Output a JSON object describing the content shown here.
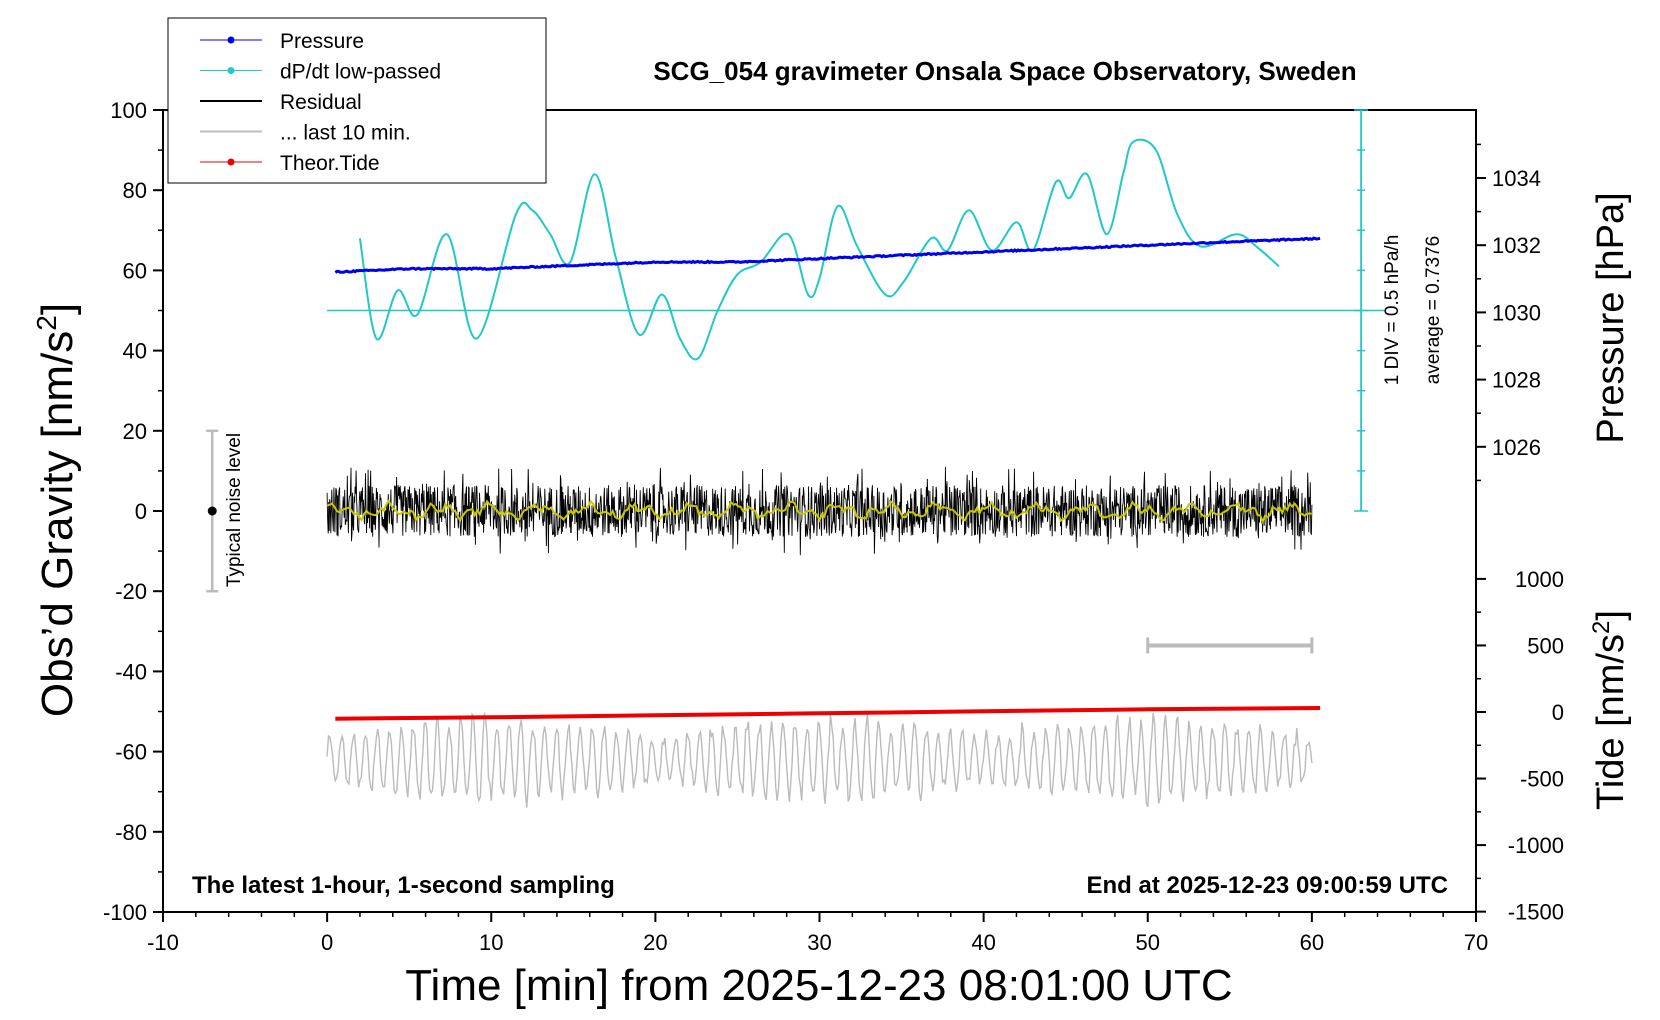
{
  "chart_data": {
    "type": "line",
    "title": "SCG_054 gravimeter Onsala Space Observatory, Sweden",
    "xlabel": "Time [min] from 2025-12-23 08:01:00 UTC",
    "ylabel_left": "Obs’d Gravity [nm/s",
    "ylabel_left_sup": "2",
    "ylabel_left_close": "]",
    "ylabel_right_pressure": "Pressure [hPa]",
    "ylabel_right_tide": "Tide [nm/s",
    "ylabel_right_tide_sup": "2",
    "ylabel_right_tide_close": "]",
    "xlim": [
      -10,
      70
    ],
    "ylim_gravity": [
      -100,
      100
    ],
    "pressure_range": [
      1024,
      1036
    ],
    "tide_range": [
      -1500,
      1500
    ],
    "x_ticks": [
      "-10",
      "0",
      "10",
      "20",
      "30",
      "40",
      "50",
      "60",
      "70"
    ],
    "y_ticks_left": [
      "100",
      "80",
      "60",
      "40",
      "20",
      "0",
      "-20",
      "-40",
      "-60",
      "-80",
      "-100"
    ],
    "y_ticks_pressure": [
      "1034",
      "1032",
      "1030",
      "1028",
      "1026"
    ],
    "y_ticks_tide": [
      "1000",
      "500",
      "0",
      "-500",
      "-1000",
      "-1500"
    ],
    "legend": [
      {
        "label": "Pressure",
        "color": "#0000ee",
        "marker": "dot"
      },
      {
        "label": "dP/dt low-passed",
        "color": "#20c8c8",
        "marker": "dot"
      },
      {
        "label": "Residual",
        "color": "#000000",
        "marker": "none"
      },
      {
        "label": "... last 10 min.",
        "color": "#bbbbbb",
        "marker": "none"
      },
      {
        "label": "Theor.Tide",
        "color": "#ee0000",
        "marker": "dot"
      }
    ],
    "series": [
      {
        "name": "Pressure",
        "axis": "pressure",
        "x": [
          0.5,
          5,
          10,
          15,
          20,
          25,
          30,
          35,
          40,
          45,
          50,
          55,
          60.5
        ],
        "values": [
          1031.2,
          1031.3,
          1031.3,
          1031.4,
          1031.5,
          1031.5,
          1031.6,
          1031.7,
          1031.8,
          1031.9,
          1032.0,
          1032.1,
          1032.2
        ]
      },
      {
        "name": "dP/dt low-passed",
        "axis": "gravity",
        "x": [
          2,
          3,
          4.3,
          5.5,
          7.3,
          9.1,
          11.5,
          12.5,
          13.6,
          14.8,
          16.3,
          17.6,
          19.0,
          20.4,
          21.5,
          22.6,
          23.8,
          25.0,
          26.4,
          28.1,
          29.3,
          30.0,
          31.1,
          32.3,
          34.0,
          35.1,
          36.8,
          37.8,
          39.1,
          40.5,
          42.0,
          43.0,
          44.4,
          45.2,
          46.3,
          47.5,
          48.5,
          49.1,
          50.5,
          51.8,
          53.2,
          55.4,
          56.6,
          58.0
        ],
        "values": [
          68,
          43,
          55,
          49,
          69,
          43,
          74,
          75,
          69,
          62,
          84,
          63,
          44,
          54,
          43,
          38,
          50,
          59,
          62,
          69,
          54,
          58,
          76,
          66,
          54,
          57,
          68,
          65,
          75,
          65,
          72,
          65,
          82,
          78,
          84,
          69,
          84,
          92,
          90,
          74,
          66,
          69,
          66,
          61
        ]
      },
      {
        "name": "Residual",
        "axis": "gravity",
        "x_range": [
          0,
          60
        ],
        "mean": 0,
        "spread": [
          -16,
          16
        ]
      },
      {
        "name": "... last 10 min.",
        "axis": "gravity",
        "x_range": [
          0,
          60
        ],
        "mean": -62,
        "spread": [
          -73,
          -51
        ]
      },
      {
        "name": "Theor.Tide",
        "axis": "tide",
        "x": [
          0.5,
          10,
          20,
          30,
          40,
          50,
          60.5
        ],
        "values": [
          -50,
          -40,
          -25,
          -10,
          5,
          20,
          30
        ]
      }
    ],
    "baseline_gravity": 50,
    "pressure_scale_labels": [
      "1 DIV = 0.5 hPa/h",
      "average = 0.7376"
    ],
    "noise_bar_label": "Typical noise level",
    "noise_bar_range": [
      -20,
      20
    ],
    "noise_bar_x": -7,
    "last10_bar": {
      "x": [
        50,
        60
      ],
      "tide_value": 500
    },
    "annotations": {
      "left": "The latest 1-hour, 1-second sampling",
      "right": "End at 2025-12-23 09:00:59 UTC"
    },
    "grid": false,
    "legend_position": "top-left"
  }
}
